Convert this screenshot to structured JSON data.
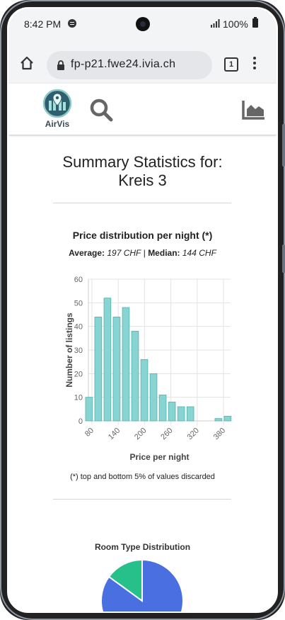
{
  "status_bar": {
    "time": "8:42 PM",
    "battery": "100%"
  },
  "browser": {
    "url": "fp-p21.fwe24.ivia.ch",
    "tab_count": "1"
  },
  "app": {
    "logo_text": "AirVis"
  },
  "summary": {
    "title_line1": "Summary Statistics for:",
    "title_line2": "Kreis 3"
  },
  "price_section": {
    "title": "Price distribution per night (*)",
    "average_label": "Average:",
    "average_value": "197 CHF",
    "separator": "|",
    "median_label": "Median:",
    "median_value": "144 CHF",
    "footnote": "(*) top and bottom 5% of values discarded"
  },
  "chart_data": {
    "type": "bar",
    "title": "Price distribution per night (*)",
    "xlabel": "Price per night",
    "ylabel": "Number of listings",
    "ylim": [
      0,
      60
    ],
    "yticks": [
      0,
      10,
      20,
      30,
      40,
      50,
      60
    ],
    "xlim": [
      72,
      396
    ],
    "xticks": [
      80,
      140,
      200,
      260,
      320,
      380
    ],
    "bar_color": "#88d4d2",
    "bar_edge": "#4fb3b0",
    "grid": true,
    "bins": [
      {
        "x": 75,
        "value": 10
      },
      {
        "x": 96,
        "value": 44
      },
      {
        "x": 117,
        "value": 52
      },
      {
        "x": 138,
        "value": 44
      },
      {
        "x": 159,
        "value": 48
      },
      {
        "x": 180,
        "value": 38
      },
      {
        "x": 201,
        "value": 26
      },
      {
        "x": 222,
        "value": 20
      },
      {
        "x": 243,
        "value": 11
      },
      {
        "x": 264,
        "value": 8
      },
      {
        "x": 285,
        "value": 6
      },
      {
        "x": 306,
        "value": 6
      },
      {
        "x": 370,
        "value": 1
      },
      {
        "x": 391,
        "value": 2
      }
    ],
    "bin_width": 19
  },
  "room_section": {
    "title": "Room Type Distribution",
    "pie_colors": [
      "#4a6fe0",
      "#27c08a"
    ],
    "pie_values": [
      0.85,
      0.15
    ]
  }
}
